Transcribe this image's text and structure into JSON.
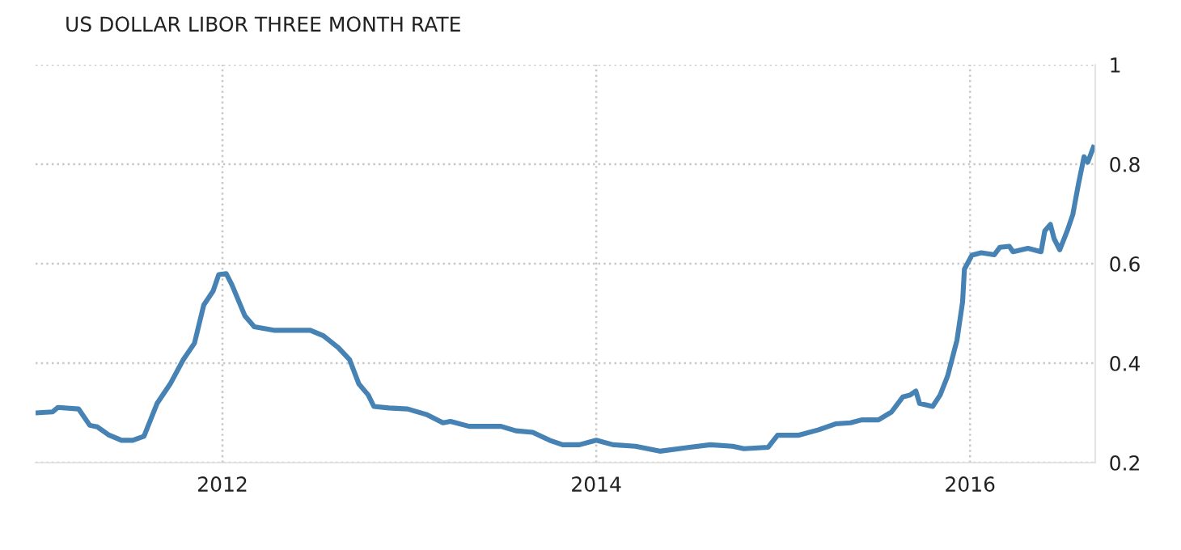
{
  "chart_data": {
    "type": "line",
    "title": "US DOLLAR LIBOR THREE MONTH RATE",
    "x": [
      2011.0,
      2011.09,
      2011.12,
      2011.23,
      2011.29,
      2011.33,
      2011.39,
      2011.46,
      2011.52,
      2011.58,
      2011.65,
      2011.72,
      2011.79,
      2011.85,
      2011.9,
      2011.95,
      2011.98,
      2012.02,
      2012.05,
      2012.12,
      2012.17,
      2012.28,
      2012.47,
      2012.54,
      2012.62,
      2012.68,
      2012.73,
      2012.78,
      2012.81,
      2012.89,
      2012.99,
      2013.09,
      2013.18,
      2013.22,
      2013.32,
      2013.49,
      2013.57,
      2013.66,
      2013.75,
      2013.82,
      2013.91,
      2014.0,
      2014.09,
      2014.21,
      2014.34,
      2014.5,
      2014.61,
      2014.73,
      2014.79,
      2014.92,
      2014.97,
      2015.08,
      2015.19,
      2015.28,
      2015.36,
      2015.42,
      2015.51,
      2015.58,
      2015.64,
      2015.68,
      2015.71,
      2015.73,
      2015.8,
      2015.84,
      2015.88,
      2015.93,
      2015.96,
      2015.97,
      2016.01,
      2016.06,
      2016.13,
      2016.16,
      2016.21,
      2016.23,
      2016.31,
      2016.38,
      2016.4,
      2016.43,
      2016.45,
      2016.48,
      2016.52,
      2016.55,
      2016.58,
      2016.61,
      2016.63,
      2016.66
    ],
    "series": [
      {
        "color": "#4682b4",
        "values": [
          0.3,
          0.302,
          0.311,
          0.308,
          0.275,
          0.272,
          0.256,
          0.245,
          0.245,
          0.253,
          0.319,
          0.358,
          0.407,
          0.44,
          0.517,
          0.545,
          0.578,
          0.58,
          0.558,
          0.495,
          0.473,
          0.466,
          0.466,
          0.455,
          0.431,
          0.407,
          0.358,
          0.336,
          0.313,
          0.31,
          0.308,
          0.297,
          0.28,
          0.283,
          0.273,
          0.273,
          0.264,
          0.261,
          0.245,
          0.236,
          0.236,
          0.245,
          0.236,
          0.233,
          0.223,
          0.231,
          0.236,
          0.233,
          0.228,
          0.231,
          0.255,
          0.255,
          0.266,
          0.278,
          0.28,
          0.286,
          0.286,
          0.302,
          0.332,
          0.336,
          0.344,
          0.319,
          0.313,
          0.336,
          0.374,
          0.446,
          0.523,
          0.589,
          0.617,
          0.622,
          0.618,
          0.633,
          0.635,
          0.624,
          0.631,
          0.624,
          0.666,
          0.679,
          0.65,
          0.628,
          0.666,
          0.699,
          0.76,
          0.815,
          0.804,
          0.834
        ]
      }
    ],
    "xlim": [
      2011.0,
      2016.67
    ],
    "xticks": [
      2012,
      2014,
      2016
    ],
    "ylim": [
      0.2,
      1
    ],
    "yticks": [
      0.2,
      0.4,
      0.6,
      0.8,
      1
    ],
    "grid": true,
    "line_style": "solid",
    "marker": "none"
  }
}
